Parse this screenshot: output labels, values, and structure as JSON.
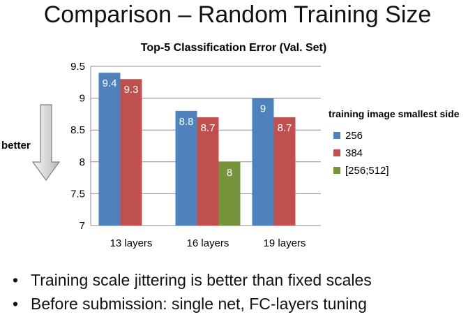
{
  "slide": {
    "title": "Comparison – Random Training Size",
    "bullets": [
      "Training scale jittering is better than fixed scales",
      "Before submission: single net, FC-layers tuning"
    ]
  },
  "annotation": {
    "better_label": "better"
  },
  "chart_data": {
    "type": "bar",
    "title": "Top-5 Classification Error (Val. Set)",
    "xlabel": "",
    "ylabel": "",
    "ylim": [
      7,
      9.5
    ],
    "yticks": [
      7,
      7.5,
      8,
      8.5,
      9,
      9.5
    ],
    "ytick_labels": [
      "7",
      "7.5",
      "8",
      "8.5",
      "9",
      "9.5"
    ],
    "grid": true,
    "legend_title": "training image smallest side",
    "legend_position": "right",
    "categories": [
      "13 layers",
      "16 layers",
      "19 layers"
    ],
    "series": [
      {
        "name": "256",
        "color": "#4f81bd",
        "values": [
          9.4,
          8.8,
          9.0
        ],
        "labels": [
          "9.4",
          "8.8",
          "9"
        ]
      },
      {
        "name": "384",
        "color": "#c0504d",
        "values": [
          9.3,
          8.7,
          8.7
        ],
        "labels": [
          "9.3",
          "8.7",
          "8.7"
        ]
      },
      {
        "name": "[256;512]",
        "color": "#77933c",
        "values": [
          null,
          8.0,
          null
        ],
        "labels": [
          "",
          "8",
          ""
        ]
      }
    ]
  }
}
